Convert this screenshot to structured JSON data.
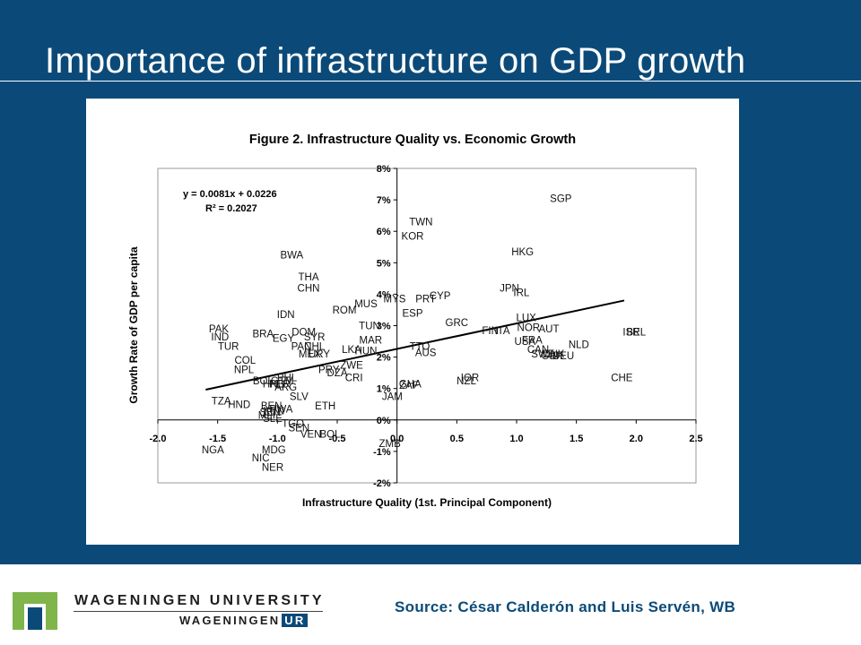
{
  "slide": {
    "title": "Importance of infrastructure  on GDP growth",
    "source": "Source: César Calderón and Luis Servén, WB",
    "logo": {
      "line1": "WAGENINGEN UNIVERSITY",
      "line2": "WAGENINGEN",
      "line2_box": "UR"
    },
    "colors": {
      "background": "#0b4a78",
      "accent": "#0b4a78",
      "logo_green": "#7fb54a"
    }
  },
  "chart_data": {
    "type": "scatter",
    "title": "Figure 2. Infrastructure Quality vs. Economic Growth",
    "xlabel": "Infrastructure Quality (1st. Principal Component)",
    "ylabel": "Growth Rate of GDP per capita",
    "xlim": [
      -2.0,
      2.5
    ],
    "ylim": [
      -0.02,
      0.08
    ],
    "xticks": [
      -2.0,
      -1.5,
      -1.0,
      -0.5,
      0.0,
      0.5,
      1.0,
      1.5,
      2.0,
      2.5
    ],
    "xtick_labels": [
      "-2.0",
      "-1.5",
      "-1.0",
      "-0.5",
      "0.0",
      "0.5",
      "1.0",
      "1.5",
      "2.0",
      "2.5"
    ],
    "yticks": [
      -0.02,
      -0.01,
      0.0,
      0.01,
      0.02,
      0.03,
      0.04,
      0.05,
      0.06,
      0.07,
      0.08
    ],
    "ytick_labels": [
      "-2%",
      "-1%",
      "0%",
      "1%",
      "2%",
      "3%",
      "4%",
      "5%",
      "6%",
      "7%",
      "8%"
    ],
    "grid": false,
    "equation": "y = 0.0081x + 0.0226",
    "r2": "R² = 0.2027",
    "trendline": {
      "slope": 0.0081,
      "intercept": 0.0226,
      "x_range": [
        -1.6,
        1.9
      ]
    },
    "points": [
      {
        "label": "SGP",
        "x": 1.37,
        "y": 0.0705
      },
      {
        "label": "TWN",
        "x": 0.2,
        "y": 0.063
      },
      {
        "label": "KOR",
        "x": 0.13,
        "y": 0.0585
      },
      {
        "label": "HKG",
        "x": 1.05,
        "y": 0.0535
      },
      {
        "label": "BWA",
        "x": -0.88,
        "y": 0.0525
      },
      {
        "label": "THA",
        "x": -0.74,
        "y": 0.0455
      },
      {
        "label": "CHN",
        "x": -0.74,
        "y": 0.042
      },
      {
        "label": "JPN",
        "x": 0.94,
        "y": 0.042
      },
      {
        "label": "IRL",
        "x": 1.04,
        "y": 0.0405
      },
      {
        "label": "CYP",
        "x": 0.36,
        "y": 0.0395
      },
      {
        "label": "MYS",
        "x": -0.02,
        "y": 0.0385
      },
      {
        "label": "PRT",
        "x": 0.24,
        "y": 0.0385
      },
      {
        "label": "MUS",
        "x": -0.26,
        "y": 0.037
      },
      {
        "label": "ROM",
        "x": -0.44,
        "y": 0.035
      },
      {
        "label": "ESP",
        "x": 0.13,
        "y": 0.034
      },
      {
        "label": "IDN",
        "x": -0.93,
        "y": 0.0335
      },
      {
        "label": "GRC",
        "x": 0.5,
        "y": 0.031
      },
      {
        "label": "LUX",
        "x": 1.08,
        "y": 0.0325
      },
      {
        "label": "NOR",
        "x": 1.1,
        "y": 0.0295
      },
      {
        "label": "AUT",
        "x": 1.27,
        "y": 0.029
      },
      {
        "label": "FIN",
        "x": 0.78,
        "y": 0.0285
      },
      {
        "label": "ITA",
        "x": 0.88,
        "y": 0.0285
      },
      {
        "label": "PAK",
        "x": -1.49,
        "y": 0.029
      },
      {
        "label": "IND",
        "x": -1.48,
        "y": 0.0265
      },
      {
        "label": "BRA",
        "x": -1.12,
        "y": 0.0275
      },
      {
        "label": "DOM",
        "x": -0.78,
        "y": 0.028
      },
      {
        "label": "SYR",
        "x": -0.69,
        "y": 0.0265
      },
      {
        "label": "EGY",
        "x": -0.95,
        "y": 0.026
      },
      {
        "label": "TUN",
        "x": -0.23,
        "y": 0.03
      },
      {
        "label": "MAR",
        "x": -0.22,
        "y": 0.0255
      },
      {
        "label": "USA",
        "x": 1.07,
        "y": 0.025
      },
      {
        "label": "FRA",
        "x": 1.13,
        "y": 0.0255
      },
      {
        "label": "ISR",
        "x": 1.96,
        "y": 0.028
      },
      {
        "label": "BEL",
        "x": 2.0,
        "y": 0.028
      },
      {
        "label": "TUR",
        "x": -1.41,
        "y": 0.0235
      },
      {
        "label": "PAN",
        "x": -0.8,
        "y": 0.0235
      },
      {
        "label": "CHL",
        "x": -0.69,
        "y": 0.0235
      },
      {
        "label": "NLD",
        "x": 1.52,
        "y": 0.024
      },
      {
        "label": "CAN",
        "x": 1.18,
        "y": 0.0225
      },
      {
        "label": "DNK",
        "x": 1.31,
        "y": 0.021
      },
      {
        "label": "SWE",
        "x": 1.22,
        "y": 0.021
      },
      {
        "label": "GBR",
        "x": 1.3,
        "y": 0.0205
      },
      {
        "label": "DEU",
        "x": 1.39,
        "y": 0.0205
      },
      {
        "label": "TTO",
        "x": 0.19,
        "y": 0.0235
      },
      {
        "label": "AUS",
        "x": 0.24,
        "y": 0.0215
      },
      {
        "label": "LKA",
        "x": -0.38,
        "y": 0.0225
      },
      {
        "label": "HUN",
        "x": -0.26,
        "y": 0.022
      },
      {
        "label": "MEX",
        "x": -0.73,
        "y": 0.021
      },
      {
        "label": "URY",
        "x": -0.65,
        "y": 0.021
      },
      {
        "label": "COL",
        "x": -1.27,
        "y": 0.019
      },
      {
        "label": "NPL",
        "x": -1.28,
        "y": 0.016
      },
      {
        "label": "DZA",
        "x": -0.5,
        "y": 0.015
      },
      {
        "label": "ZWE",
        "x": -0.38,
        "y": 0.0175
      },
      {
        "label": "CRI",
        "x": -0.36,
        "y": 0.0135
      },
      {
        "label": "PRY",
        "x": -0.57,
        "y": 0.016
      },
      {
        "label": "PHL",
        "x": -0.92,
        "y": 0.0135
      },
      {
        "label": "GTM",
        "x": -0.96,
        "y": 0.0125
      },
      {
        "label": "BOL",
        "x": -1.12,
        "y": 0.0125
      },
      {
        "label": "PER",
        "x": -0.98,
        "y": 0.0115
      },
      {
        "label": "HND",
        "x": -1.03,
        "y": 0.0115
      },
      {
        "label": "ARG",
        "x": -0.93,
        "y": 0.0105
      },
      {
        "label": "GHA",
        "x": 0.11,
        "y": 0.0115
      },
      {
        "label": "ZAF",
        "x": 0.1,
        "y": 0.011
      },
      {
        "label": "JAM",
        "x": -0.04,
        "y": 0.0075
      },
      {
        "label": "NZL",
        "x": 0.58,
        "y": 0.0125
      },
      {
        "label": "IOR",
        "x": 0.61,
        "y": 0.0135
      },
      {
        "label": "CHE",
        "x": 1.88,
        "y": 0.0135
      },
      {
        "label": "SLV",
        "x": -0.82,
        "y": 0.0075
      },
      {
        "label": "ETH",
        "x": -0.6,
        "y": 0.0045
      },
      {
        "label": "TZA",
        "x": -1.47,
        "y": 0.006
      },
      {
        "label": "HND",
        "x": -1.32,
        "y": 0.005
      },
      {
        "label": "BEN",
        "x": -1.05,
        "y": 0.0045
      },
      {
        "label": "RWA",
        "x": -0.97,
        "y": 0.0035
      },
      {
        "label": "SEN",
        "x": -1.06,
        "y": 0.0025
      },
      {
        "label": "MLI",
        "x": -1.09,
        "y": 0.0015
      },
      {
        "label": "SLE",
        "x": -1.04,
        "y": 0.0005
      },
      {
        "label": "KEN",
        "x": -1.03,
        "y": 0.003
      },
      {
        "label": "TGO",
        "x": -0.87,
        "y": -0.001
      },
      {
        "label": "SEN",
        "x": -0.82,
        "y": -0.0025
      },
      {
        "label": "VEN",
        "x": -0.72,
        "y": -0.0045
      },
      {
        "label": "BOL",
        "x": -0.56,
        "y": -0.0045
      },
      {
        "label": "ZMB",
        "x": -0.06,
        "y": -0.0075
      },
      {
        "label": "NGA",
        "x": -1.54,
        "y": -0.0095
      },
      {
        "label": "MDG",
        "x": -1.03,
        "y": -0.0095
      },
      {
        "label": "NIC",
        "x": -1.14,
        "y": -0.012
      },
      {
        "label": "NER",
        "x": -1.04,
        "y": -0.015
      }
    ]
  }
}
